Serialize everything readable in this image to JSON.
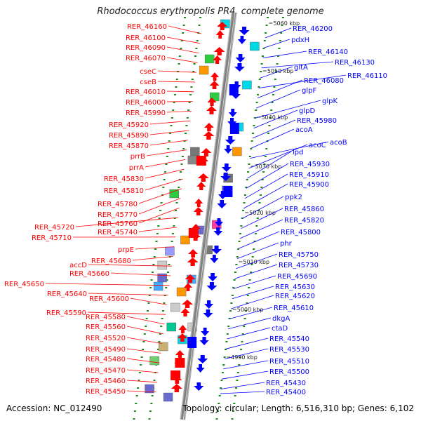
{
  "title": "Rhodococcus erythropolis PR4, complete genome",
  "footer": {
    "accession": "Accession: NC_012490",
    "topology": "Topology: circular; Length: 6,516,310 bp; Genes: 6,102"
  },
  "colors": {
    "forward": "#ff0000",
    "reverse": "#0000ff",
    "backbone": "#808080",
    "tick": "#1a8a1a"
  },
  "kbp_marks": [
    "5060 kbp",
    "5050 kbp",
    "5040 kbp",
    "5030 kbp",
    "5020 kbp",
    "5010 kbp",
    "5000 kbp",
    "4990 kbp"
  ],
  "left_labels": [
    "RER_46160",
    "RER_46100",
    "RER_46090",
    "RER_46070",
    "cseC",
    "cseB",
    "RER_46010",
    "RER_46000",
    "RER_45990",
    "RER_45920",
    "RER_45890",
    "RER_45870",
    "prrB",
    "prrA",
    "RER_45830",
    "RER_45810",
    "RER_45780",
    "RER_45770",
    "RER_45760",
    "RER_45720",
    "RER_45740",
    "RER_45710",
    "prpE",
    "RER_45680",
    "accD",
    "RER_45660",
    "RER_45650",
    "RER_45640",
    "RER_45600",
    "RER_45590",
    "RER_45580",
    "RER_45560",
    "RER_45520",
    "RER_45490",
    "RER_45480",
    "RER_45470",
    "RER_45460",
    "RER_45450"
  ],
  "right_labels": [
    "RER_46200",
    "pdxH",
    "RER_46140",
    "RER_46130",
    "gltA",
    "RER_46110",
    "RER_46080",
    "glpF",
    "glpK",
    "glpD",
    "RER_45980",
    "acoA",
    "acoB",
    "acoC",
    "lpd",
    "RER_45930",
    "RER_45910",
    "RER_45900",
    "ppk2",
    "RER_45860",
    "RER_45820",
    "RER_45800",
    "phr",
    "RER_45750",
    "RER_45730",
    "RER_45690",
    "RER_45630",
    "RER_45620",
    "RER_45610",
    "dkgA",
    "ctaD",
    "RER_45540",
    "RER_45530",
    "RER_45510",
    "RER_45500",
    "RER_45430",
    "RER_45400"
  ]
}
